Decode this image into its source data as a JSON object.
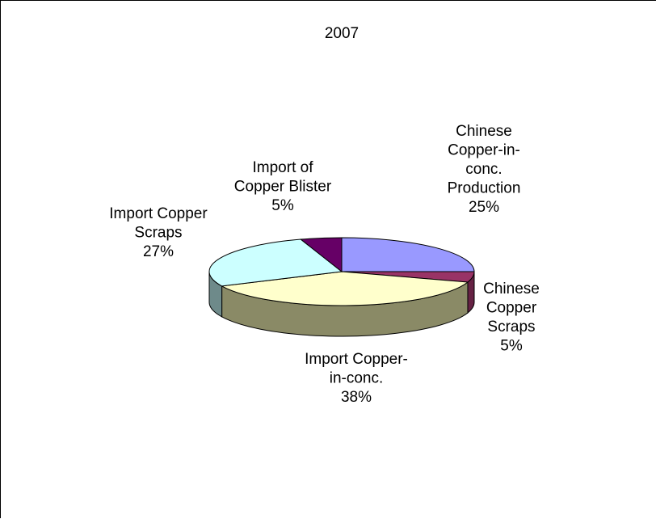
{
  "chart_data": {
    "type": "pie",
    "style": "3d-pie",
    "title": "2007",
    "categories": [
      "Chinese Copper-in-conc. Production",
      "Chinese Copper Scraps",
      "Import Copper-in-conc.",
      "Import Copper Scraps",
      "Import of Copper Blister"
    ],
    "values": [
      25,
      5,
      38,
      27,
      5
    ],
    "data_labels": [
      [
        "Chinese",
        "Copper-in-",
        "conc.",
        "Production",
        "25%"
      ],
      [
        "Chinese",
        "Copper",
        "Scraps",
        "5%"
      ],
      [
        "Import Copper-",
        "in-conc.",
        "38%"
      ],
      [
        "Import Copper",
        "Scraps",
        "27%"
      ],
      [
        "Import of",
        "Copper Blister",
        "5%"
      ]
    ],
    "colors": [
      "#9999FF",
      "#993366",
      "#FFFFCC",
      "#CCFFFF",
      "#660066"
    ],
    "side_colors": [
      "#66669A",
      "#662244",
      "#8A8A66",
      "#6E8A8A",
      "#440044"
    ],
    "legend": "none",
    "grid": false
  }
}
